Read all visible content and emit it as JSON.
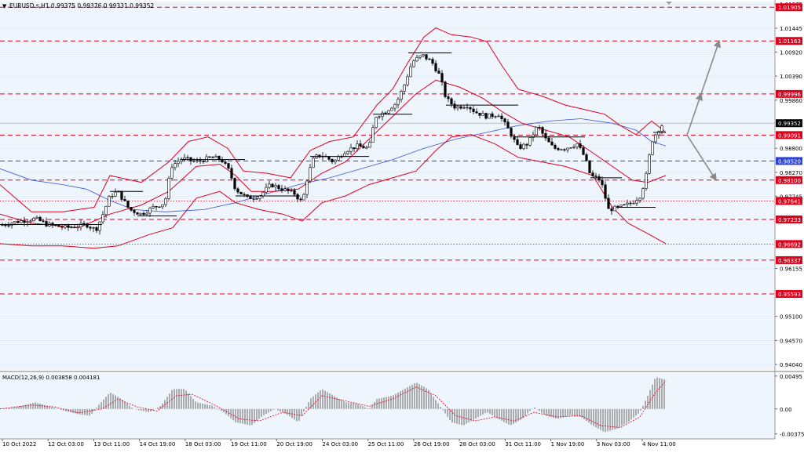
{
  "window": {
    "symbol_header": "EURUSD.s,H1  0.99375 0.99376 0.99331 0.99352",
    "macd_header": "MACD(12,26,9) 0.003858 0.004181"
  },
  "colors": {
    "background": "#eef5fd",
    "axis_bg": "#ffffff",
    "grid": "#dfe7f1",
    "candle": "#000000",
    "bollinger": "#e0001b",
    "moving_average": "#3a56d8",
    "level_red": "#e0001b",
    "level_blue": "#2b44d6",
    "forecast_arrow": "#8a8a8a",
    "price_tag_bg": "#e0001b",
    "current_price_bg": "#000000",
    "macd_hist": "#9a9a9a",
    "macd_signal": "#e0001b"
  },
  "chart_data": [
    {
      "type": "candlestick",
      "name": "EURUSD.s,H1",
      "ylim": [
        0.9392,
        1.0203
      ],
      "price_ticks": [
        "1.01975",
        "1.01445",
        "1.00920",
        "1.00390",
        "0.99860",
        "0.98800",
        "0.98270",
        "0.97745",
        "0.96155",
        "0.95100",
        "0.94570",
        "0.94040"
      ],
      "x_labels": [
        "10 Oct 2022",
        "12 Oct 03:00",
        "13 Oct 11:00",
        "14 Oct 19:00",
        "18 Oct 03:00",
        "19 Oct 11:00",
        "20 Oct 19:00",
        "24 Oct 03:00",
        "25 Oct 11:00",
        "26 Oct 19:00",
        "28 Oct 03:00",
        "31 Oct 11:00",
        "1 Nov 19:00",
        "3 Nov 03:00",
        "4 Nov 11:00"
      ],
      "last_price": 0.99352,
      "current_price_label": "0.99352",
      "levels": [
        {
          "value": 1.01905,
          "label": "1.01905",
          "color": "red",
          "style": "dashed"
        },
        {
          "value": 1.01163,
          "label": "1.01163",
          "color": "red",
          "style": "dashed"
        },
        {
          "value": 0.99996,
          "label": "0.99996",
          "color": "red",
          "style": "dashed"
        },
        {
          "value": 0.99091,
          "label": "0.99091",
          "color": "red",
          "style": "dashed"
        },
        {
          "value": 0.9852,
          "label": "0.98520",
          "color": "blue",
          "style": "dashed"
        },
        {
          "value": 0.981,
          "label": "0.98100",
          "color": "red",
          "style": "dashed"
        },
        {
          "value": 0.97641,
          "label": "0.97641",
          "color": "red",
          "style": "dotted"
        },
        {
          "value": 0.97233,
          "label": "0.97233",
          "color": "red",
          "style": "dashed"
        },
        {
          "value": 0.96692,
          "label": "0.96692",
          "color": "red",
          "style": "dotted"
        },
        {
          "value": 0.96337,
          "label": "0.96337",
          "color": "red",
          "style": "dashed"
        },
        {
          "value": 0.95593,
          "label": "0.95593",
          "color": "red",
          "style": "dashed"
        }
      ],
      "close_path": [
        [
          0,
          0.971
        ],
        [
          20,
          0.9718
        ],
        [
          45,
          0.9725
        ],
        [
          60,
          0.9712
        ],
        [
          85,
          0.9705
        ],
        [
          110,
          0.9712
        ],
        [
          122,
          0.97
        ],
        [
          130,
          0.973
        ],
        [
          140,
          0.9775
        ],
        [
          150,
          0.9785
        ],
        [
          165,
          0.9745
        ],
        [
          180,
          0.9735
        ],
        [
          195,
          0.975
        ],
        [
          210,
          0.976
        ],
        [
          218,
          0.984
        ],
        [
          232,
          0.9858
        ],
        [
          250,
          0.985
        ],
        [
          270,
          0.986
        ],
        [
          282,
          0.9855
        ],
        [
          292,
          0.983
        ],
        [
          300,
          0.979
        ],
        [
          315,
          0.977
        ],
        [
          330,
          0.9775
        ],
        [
          345,
          0.98
        ],
        [
          360,
          0.979
        ],
        [
          375,
          0.978
        ],
        [
          385,
          0.976
        ],
        [
          392,
          0.982
        ],
        [
          400,
          0.986
        ],
        [
          410,
          0.9865
        ],
        [
          425,
          0.985
        ],
        [
          440,
          0.9875
        ],
        [
          455,
          0.9885
        ],
        [
          470,
          0.988
        ],
        [
          478,
          0.995
        ],
        [
          490,
          0.996
        ],
        [
          505,
          0.998
        ],
        [
          515,
          1.002
        ],
        [
          525,
          1.007
        ],
        [
          538,
          1.0085
        ],
        [
          550,
          1.007
        ],
        [
          560,
          1.004
        ],
        [
          568,
          0.999
        ],
        [
          580,
          0.997
        ],
        [
          595,
          0.9975
        ],
        [
          605,
          0.996
        ],
        [
          620,
          0.995
        ],
        [
          635,
          0.9955
        ],
        [
          648,
          0.992
        ],
        [
          660,
          0.988
        ],
        [
          672,
          0.989
        ],
        [
          685,
          0.993
        ],
        [
          695,
          0.99
        ],
        [
          705,
          0.988
        ],
        [
          720,
          0.988
        ],
        [
          735,
          0.989
        ],
        [
          745,
          0.986
        ],
        [
          752,
          0.982
        ],
        [
          765,
          0.981
        ],
        [
          775,
          0.9745
        ],
        [
          790,
          0.975
        ],
        [
          805,
          0.976
        ],
        [
          815,
          0.9775
        ],
        [
          822,
          0.981
        ],
        [
          830,
          0.9895
        ],
        [
          838,
          0.992
        ],
        [
          845,
          0.9935
        ]
      ],
      "bollinger_upper": [
        [
          0,
          0.98
        ],
        [
          40,
          0.974
        ],
        [
          80,
          0.974
        ],
        [
          120,
          0.975
        ],
        [
          140,
          0.982
        ],
        [
          180,
          0.9805
        ],
        [
          215,
          0.985
        ],
        [
          240,
          0.9895
        ],
        [
          265,
          0.9905
        ],
        [
          290,
          0.988
        ],
        [
          310,
          0.983
        ],
        [
          340,
          0.9825
        ],
        [
          370,
          0.9815
        ],
        [
          395,
          0.9875
        ],
        [
          420,
          0.9895
        ],
        [
          450,
          0.9905
        ],
        [
          480,
          0.9975
        ],
        [
          500,
          1.001
        ],
        [
          520,
          1.007
        ],
        [
          540,
          1.0125
        ],
        [
          555,
          1.0145
        ],
        [
          575,
          1.013
        ],
        [
          600,
          1.0125
        ],
        [
          620,
          1.0115
        ],
        [
          640,
          1.006
        ],
        [
          660,
          1.001
        ],
        [
          690,
          0.9995
        ],
        [
          720,
          0.9975
        ],
        [
          745,
          0.9965
        ],
        [
          770,
          0.9955
        ],
        [
          790,
          0.993
        ],
        [
          810,
          0.991
        ],
        [
          830,
          0.994
        ],
        [
          848,
          0.9915
        ]
      ],
      "bollinger_middle": [
        [
          0,
          0.9735
        ],
        [
          40,
          0.9715
        ],
        [
          100,
          0.9705
        ],
        [
          140,
          0.9735
        ],
        [
          180,
          0.9755
        ],
        [
          215,
          0.9785
        ],
        [
          250,
          0.984
        ],
        [
          280,
          0.9845
        ],
        [
          300,
          0.982
        ],
        [
          320,
          0.9785
        ],
        [
          350,
          0.9785
        ],
        [
          380,
          0.979
        ],
        [
          410,
          0.9825
        ],
        [
          440,
          0.985
        ],
        [
          470,
          0.99
        ],
        [
          500,
          0.995
        ],
        [
          530,
          1.0
        ],
        [
          555,
          1.003
        ],
        [
          585,
          1.0015
        ],
        [
          615,
          0.999
        ],
        [
          640,
          0.996
        ],
        [
          665,
          0.9935
        ],
        [
          695,
          0.992
        ],
        [
          725,
          0.9905
        ],
        [
          755,
          0.987
        ],
        [
          780,
          0.984
        ],
        [
          805,
          0.981
        ],
        [
          825,
          0.9805
        ],
        [
          848,
          0.982
        ]
      ],
      "bollinger_lower": [
        [
          0,
          0.967
        ],
        [
          40,
          0.9665
        ],
        [
          80,
          0.9665
        ],
        [
          120,
          0.966
        ],
        [
          150,
          0.9665
        ],
        [
          190,
          0.969
        ],
        [
          220,
          0.9705
        ],
        [
          250,
          0.977
        ],
        [
          280,
          0.9785
        ],
        [
          300,
          0.976
        ],
        [
          330,
          0.9745
        ],
        [
          360,
          0.9735
        ],
        [
          385,
          0.972
        ],
        [
          410,
          0.976
        ],
        [
          440,
          0.9775
        ],
        [
          470,
          0.98
        ],
        [
          500,
          0.9815
        ],
        [
          530,
          0.983
        ],
        [
          555,
          0.9875
        ],
        [
          575,
          0.9905
        ],
        [
          600,
          0.991
        ],
        [
          630,
          0.989
        ],
        [
          660,
          0.986
        ],
        [
          690,
          0.985
        ],
        [
          720,
          0.984
        ],
        [
          755,
          0.982
        ],
        [
          780,
          0.975
        ],
        [
          800,
          0.9715
        ],
        [
          822,
          0.9695
        ],
        [
          848,
          0.967
        ]
      ],
      "moving_average": [
        [
          0,
          0.9835
        ],
        [
          40,
          0.981
        ],
        [
          80,
          0.98
        ],
        [
          110,
          0.979
        ],
        [
          140,
          0.9765
        ],
        [
          170,
          0.9745
        ],
        [
          210,
          0.974
        ],
        [
          260,
          0.9745
        ],
        [
          300,
          0.976
        ],
        [
          340,
          0.978
        ],
        [
          380,
          0.98
        ],
        [
          420,
          0.9815
        ],
        [
          460,
          0.9835
        ],
        [
          500,
          0.9855
        ],
        [
          540,
          0.988
        ],
        [
          580,
          0.99
        ],
        [
          620,
          0.9915
        ],
        [
          660,
          0.993
        ],
        [
          700,
          0.994
        ],
        [
          740,
          0.9945
        ],
        [
          780,
          0.9935
        ],
        [
          810,
          0.992
        ],
        [
          830,
          0.9895
        ],
        [
          848,
          0.9885
        ]
      ],
      "forecast_arrows": [
        {
          "from": [
            875,
            0.9909
          ],
          "to": [
            893,
            0.99996
          ]
        },
        {
          "from": [
            893,
            0.99996
          ],
          "to": [
            916,
            1.01163
          ]
        },
        {
          "from": [
            875,
            0.9909
          ],
          "to": [
            912,
            0.981
          ]
        }
      ]
    },
    {
      "type": "histogram",
      "name": "MACD(12,26,9)",
      "ylim": [
        -0.0045,
        0.0054
      ],
      "y_ticks": [
        "0.00495",
        "0.00",
        "-0.003755"
      ],
      "histogram": [
        [
          0,
          0.0
        ],
        [
          30,
          0.0005
        ],
        [
          45,
          0.001
        ],
        [
          60,
          0.0005
        ],
        [
          80,
          -0.0002
        ],
        [
          100,
          -0.0008
        ],
        [
          115,
          -0.001
        ],
        [
          125,
          0.0005
        ],
        [
          140,
          0.0025
        ],
        [
          155,
          0.0015
        ],
        [
          170,
          0.0
        ],
        [
          190,
          -0.0005
        ],
        [
          205,
          0.0005
        ],
        [
          220,
          0.003
        ],
        [
          235,
          0.003
        ],
        [
          250,
          0.001
        ],
        [
          270,
          0.0005
        ],
        [
          285,
          -0.0005
        ],
        [
          300,
          -0.002
        ],
        [
          320,
          -0.0025
        ],
        [
          335,
          -0.001
        ],
        [
          350,
          0.0
        ],
        [
          365,
          -0.0008
        ],
        [
          380,
          -0.002
        ],
        [
          395,
          0.0015
        ],
        [
          410,
          0.003
        ],
        [
          425,
          0.002
        ],
        [
          440,
          0.001
        ],
        [
          455,
          0.0008
        ],
        [
          470,
          0.0
        ],
        [
          480,
          0.0015
        ],
        [
          500,
          0.002
        ],
        [
          515,
          0.003
        ],
        [
          530,
          0.004
        ],
        [
          545,
          0.003
        ],
        [
          560,
          0.0005
        ],
        [
          575,
          -0.002
        ],
        [
          590,
          -0.0025
        ],
        [
          605,
          -0.0015
        ],
        [
          620,
          -0.0005
        ],
        [
          635,
          -0.0015
        ],
        [
          650,
          -0.0025
        ],
        [
          665,
          -0.0015
        ],
        [
          680,
          0.0003
        ],
        [
          695,
          -0.001
        ],
        [
          710,
          -0.0015
        ],
        [
          725,
          -0.001
        ],
        [
          740,
          -0.0012
        ],
        [
          755,
          -0.0025
        ],
        [
          770,
          -0.0035
        ],
        [
          785,
          -0.003
        ],
        [
          800,
          -0.002
        ],
        [
          815,
          -0.0005
        ],
        [
          825,
          0.002
        ],
        [
          835,
          0.0048
        ],
        [
          848,
          0.0044
        ]
      ],
      "signal": [
        [
          0,
          0.0
        ],
        [
          40,
          0.0006
        ],
        [
          70,
          0.0003
        ],
        [
          100,
          -0.0006
        ],
        [
          130,
          0.0
        ],
        [
          150,
          0.0015
        ],
        [
          175,
          0.0003
        ],
        [
          200,
          -0.0003
        ],
        [
          225,
          0.002
        ],
        [
          245,
          0.0022
        ],
        [
          275,
          0.0005
        ],
        [
          305,
          -0.0015
        ],
        [
          330,
          -0.0018
        ],
        [
          360,
          -0.0005
        ],
        [
          385,
          -0.001
        ],
        [
          410,
          0.002
        ],
        [
          440,
          0.0012
        ],
        [
          470,
          0.0004
        ],
        [
          500,
          0.0015
        ],
        [
          530,
          0.0033
        ],
        [
          555,
          0.002
        ],
        [
          580,
          -0.001
        ],
        [
          605,
          -0.0018
        ],
        [
          630,
          -0.0012
        ],
        [
          655,
          -0.0018
        ],
        [
          680,
          -0.0005
        ],
        [
          710,
          -0.0012
        ],
        [
          740,
          -0.001
        ],
        [
          765,
          -0.0025
        ],
        [
          790,
          -0.0028
        ],
        [
          815,
          -0.0012
        ],
        [
          835,
          0.0025
        ],
        [
          848,
          0.0042
        ]
      ]
    }
  ]
}
